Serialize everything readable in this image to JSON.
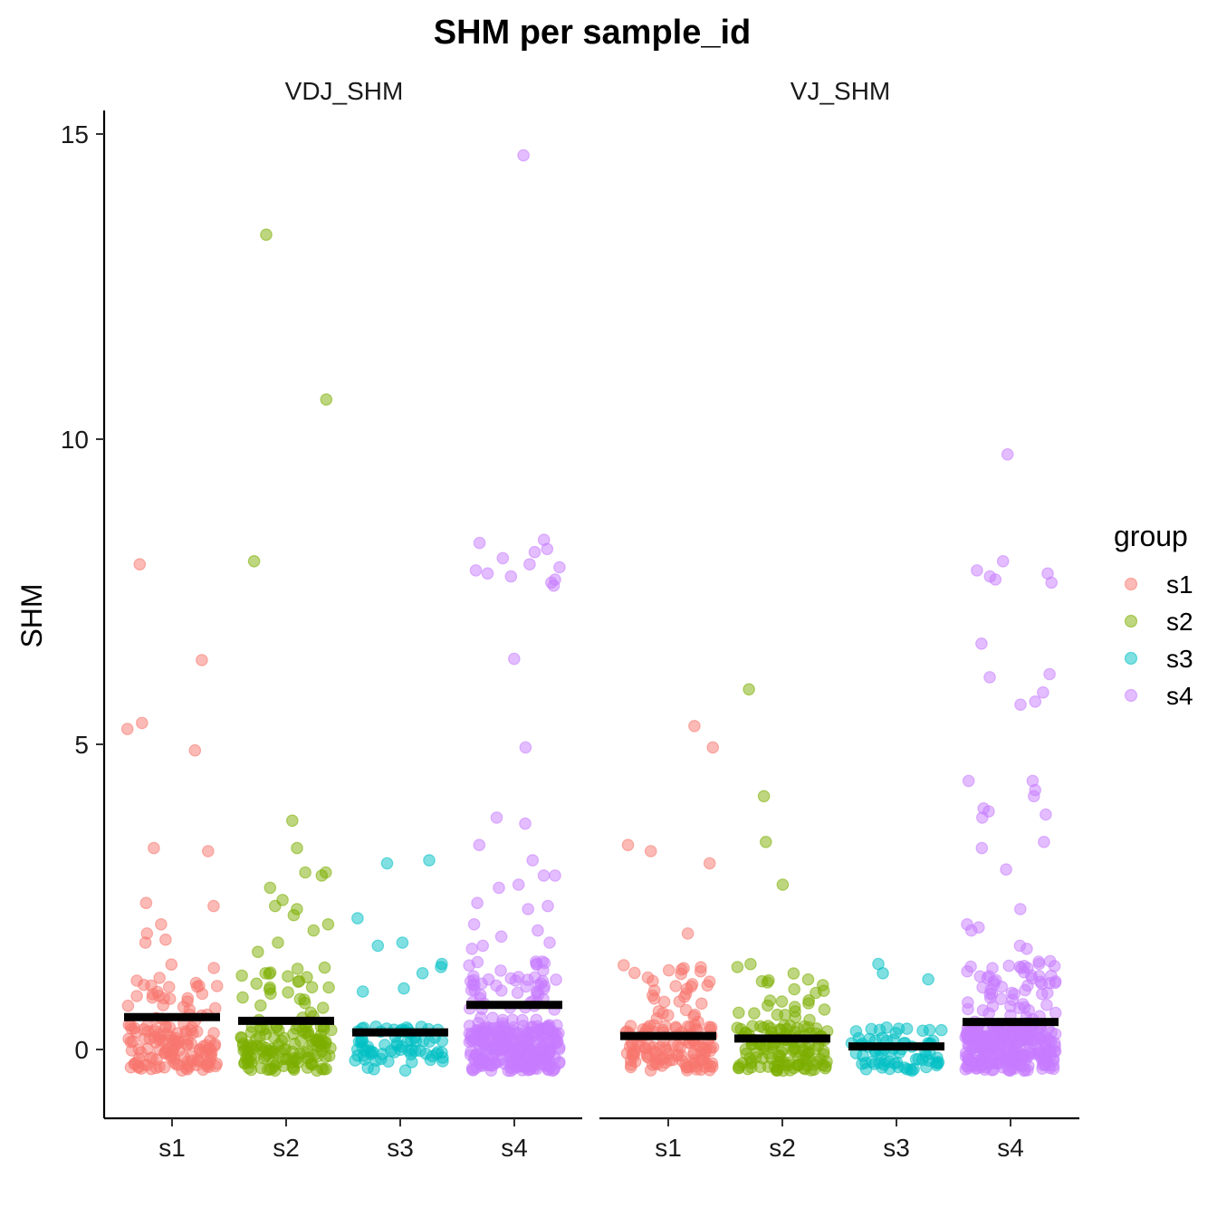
{
  "chart_data": {
    "type": "scatter",
    "title": "SHM per sample_id",
    "ylabel": "SHM",
    "xlabel": "",
    "ylim": [
      -1.15,
      15.4
    ],
    "yticks": [
      0,
      5,
      10,
      15
    ],
    "categories": [
      "s1",
      "s2",
      "s3",
      "s4"
    ],
    "legend": {
      "title": "group",
      "position": "right",
      "items": [
        {
          "label": "s1",
          "color": "#F8766D"
        },
        {
          "label": "s2",
          "color": "#7CAE00"
        },
        {
          "label": "s3",
          "color": "#00BFC4"
        },
        {
          "label": "s4",
          "color": "#C77CFF"
        }
      ]
    },
    "grid": false,
    "panels": [
      {
        "name": "VDJ_SHM",
        "means": [
          0.53,
          0.47,
          0.28,
          0.73
        ],
        "outliers": [
          {
            "x": "s1",
            "y": [
              7.95,
              6.38,
              5.35,
              5.25,
              4.9,
              3.3,
              3.25,
              2.4,
              2.35,
              2.05,
              1.9,
              1.8,
              1.75
            ]
          },
          {
            "x": "s2",
            "y": [
              13.35,
              10.65,
              8.0,
              3.75,
              3.3,
              2.9,
              2.9,
              2.85,
              2.65,
              2.45,
              2.35,
              2.3,
              2.2,
              2.05,
              1.95,
              1.75,
              1.6
            ]
          },
          {
            "x": "s3",
            "y": [
              3.1,
              3.05,
              2.15,
              1.75,
              1.7,
              1.4,
              1.35,
              1.25,
              1.0,
              0.95
            ]
          },
          {
            "x": "s4",
            "y": [
              14.65,
              8.35,
              8.3,
              8.2,
              8.15,
              8.05,
              7.95,
              7.9,
              7.85,
              7.8,
              7.75,
              7.7,
              7.65,
              7.6,
              6.4,
              4.95,
              3.8,
              3.7,
              3.35,
              3.1,
              2.85,
              2.85,
              2.7,
              2.65,
              2.4,
              2.35,
              2.3,
              2.05,
              1.95,
              1.85,
              1.75,
              1.7,
              1.65
            ]
          }
        ],
        "range_max": [
          1.4,
          1.4,
          0.4,
          1.45
        ]
      },
      {
        "name": "VJ_SHM",
        "means": [
          0.22,
          0.18,
          0.05,
          0.45
        ],
        "outliers": [
          {
            "x": "s1",
            "y": [
              5.3,
              4.95,
              3.35,
              3.25,
              3.05,
              1.9
            ]
          },
          {
            "x": "s2",
            "y": [
              5.9,
              4.15,
              3.4,
              2.7
            ]
          },
          {
            "x": "s3",
            "y": [
              1.4,
              1.25,
              1.15
            ]
          },
          {
            "x": "s4",
            "y": [
              9.75,
              8.0,
              7.85,
              7.8,
              7.75,
              7.7,
              7.65,
              6.65,
              6.15,
              6.1,
              5.85,
              5.7,
              5.65,
              4.4,
              4.4,
              4.25,
              4.15,
              3.95,
              3.9,
              3.85,
              3.8,
              3.4,
              3.3,
              2.95,
              2.3,
              2.05,
              2.0,
              1.95,
              1.7,
              1.65
            ]
          }
        ],
        "range_max": [
          1.4,
          1.4,
          0.4,
          1.45
        ]
      }
    ]
  }
}
